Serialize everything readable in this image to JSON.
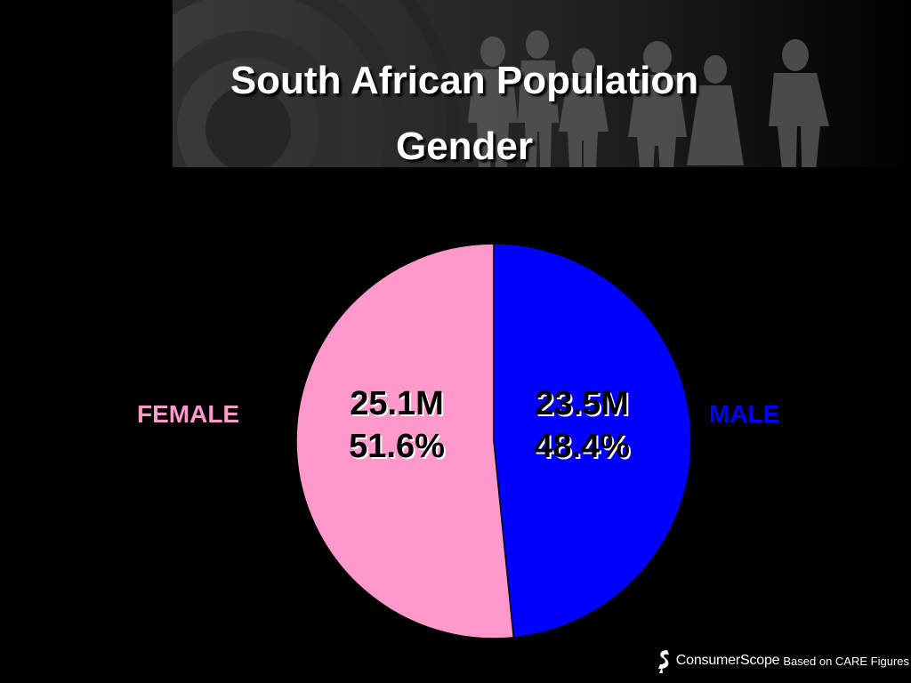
{
  "slide": {
    "title_line1": "South African Population",
    "title_line2": "Gender",
    "footer_brand": "ConsumerScope",
    "footer_note": "Based on CARE Figures"
  },
  "chart_data": {
    "type": "pie",
    "title": "South African Population Gender",
    "slices": [
      {
        "label": "MALE",
        "value_text": "23.5M",
        "percent": 48.4,
        "percent_text": "48.4%",
        "color": "#0000ff"
      },
      {
        "label": "FEMALE",
        "value_text": "25.1M",
        "percent": 51.6,
        "percent_text": "51.6%",
        "color": "#ff99cc"
      }
    ],
    "values": [
      23.5,
      25.1
    ],
    "unit": "M",
    "legend": "none"
  },
  "colors": {
    "background": "#000000",
    "female": "#ff99cc",
    "male": "#0000ff",
    "title": "#ffffff"
  },
  "icons": {
    "brand_logo": "consumerscope-logo-icon"
  }
}
